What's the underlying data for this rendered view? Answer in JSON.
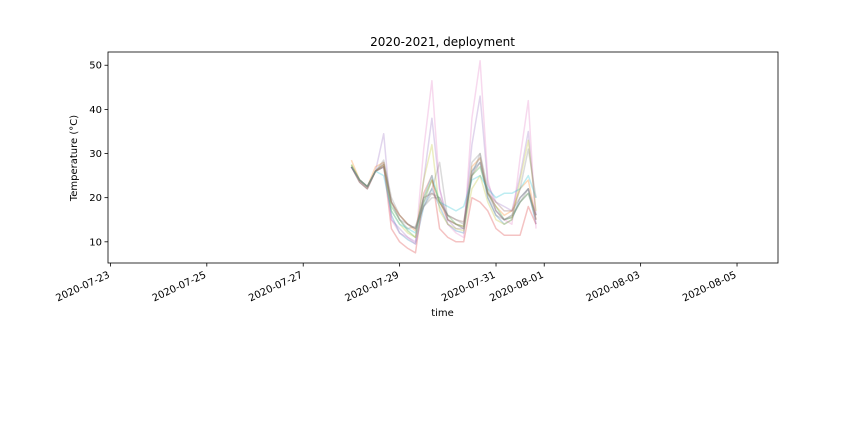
{
  "chart_data": {
    "type": "line",
    "title": "2020-2021, deployment",
    "xlabel": "time",
    "ylabel": "Temperature (°C)",
    "x_tick_labels": [
      "2020-07-23",
      "2020-07-25",
      "2020-07-27",
      "2020-07-29",
      "2020-07-31",
      "2020-08-01",
      "2020-08-03",
      "2020-08-05"
    ],
    "x_tick_dates": [
      0,
      2,
      4,
      6,
      8,
      9,
      11,
      13
    ],
    "xlim": [
      -0.05,
      13.85
    ],
    "y_ticks": [
      10,
      20,
      30,
      40,
      50
    ],
    "ylim": [
      5.2,
      53
    ],
    "x": [
      5.0,
      5.17,
      5.33,
      5.5,
      5.67,
      5.83,
      6.0,
      6.17,
      6.33,
      6.5,
      6.67,
      6.83,
      7.0,
      7.17,
      7.33,
      7.5,
      7.67,
      7.83,
      8.0,
      8.17,
      8.33,
      8.5,
      8.67,
      8.83
    ],
    "series": [
      {
        "color": "#1f77b4",
        "values": [
          27,
          24,
          22.5,
          26,
          27,
          16,
          12,
          10.5,
          9.5,
          18,
          22,
          18,
          14,
          12.5,
          12,
          26,
          28,
          20,
          16,
          14,
          15,
          20,
          22,
          14
        ]
      },
      {
        "color": "#ff7f0e",
        "values": [
          28.5,
          24,
          22.5,
          27,
          28,
          19,
          16,
          14,
          12.5,
          20,
          24,
          19,
          15,
          14,
          13.5,
          27,
          29,
          21,
          18,
          16,
          17,
          22,
          24,
          15
        ]
      },
      {
        "color": "#2ca02c",
        "values": [
          27.5,
          24,
          22.5,
          26,
          27,
          18,
          15,
          12.5,
          11,
          19,
          24,
          19,
          16,
          14,
          13.5,
          25,
          27,
          21,
          18,
          15,
          15.5,
          19,
          21,
          16
        ]
      },
      {
        "color": "#d62728",
        "values": [
          27,
          23.5,
          22,
          26,
          27.5,
          13,
          10,
          8.5,
          7.5,
          21,
          25,
          13,
          11,
          10,
          10,
          20,
          19,
          17,
          13,
          11.5,
          11.5,
          11.5,
          18,
          14
        ]
      },
      {
        "color": "#9467bd",
        "values": [
          27,
          24,
          22.5,
          26,
          34.5,
          15,
          13,
          11,
          10,
          24,
          38,
          22,
          15,
          13,
          13,
          32,
          43,
          23,
          19,
          18,
          17,
          25,
          35,
          16
        ]
      },
      {
        "color": "#8c564b",
        "values": [
          27,
          24,
          22.5,
          26,
          27,
          19,
          16,
          14,
          13,
          20,
          21,
          19,
          16,
          15,
          14.5,
          25,
          28,
          21,
          19,
          17,
          17,
          20,
          22,
          16
        ]
      },
      {
        "color": "#e377c2",
        "values": [
          27,
          24,
          22.5,
          26,
          27,
          15,
          12,
          11,
          9.5,
          31,
          46.5,
          22,
          14,
          12,
          11,
          38,
          51,
          24,
          17,
          15,
          14,
          29,
          42,
          13
        ]
      },
      {
        "color": "#7f7f7f",
        "values": [
          27,
          23.5,
          22,
          26,
          28.5,
          20,
          16,
          14,
          13,
          18,
          20,
          20,
          16,
          15,
          14,
          28,
          30,
          22,
          17,
          15,
          15.5,
          19,
          22,
          15
        ]
      },
      {
        "color": "#bcbd22",
        "values": [
          27.5,
          24,
          22.5,
          26,
          27.5,
          17,
          14,
          12,
          11,
          24,
          32,
          17,
          14,
          13,
          12.5,
          22,
          25,
          19,
          15,
          14,
          15,
          24,
          33,
          17
        ]
      },
      {
        "color": "#17becf",
        "values": [
          27,
          24,
          22.5,
          26,
          25,
          17,
          14,
          13,
          12,
          20,
          25,
          19,
          18,
          17,
          18,
          24,
          25,
          22,
          20,
          21,
          21,
          22,
          25,
          20
        ]
      },
      {
        "color": "#7f7f7f",
        "values": [
          27,
          24,
          22.5,
          26,
          27.5,
          19,
          15,
          13,
          13.5,
          19,
          22,
          28,
          15,
          14,
          13,
          25,
          30,
          20,
          16,
          15,
          16,
          22,
          31,
          20
        ]
      },
      {
        "color": "#7f7f7f",
        "values": [
          27,
          23.5,
          22,
          26,
          28,
          19,
          15,
          14,
          13,
          18,
          21,
          20,
          15,
          14,
          13,
          26,
          29,
          21,
          17,
          15,
          16,
          19,
          21,
          15
        ]
      }
    ]
  }
}
